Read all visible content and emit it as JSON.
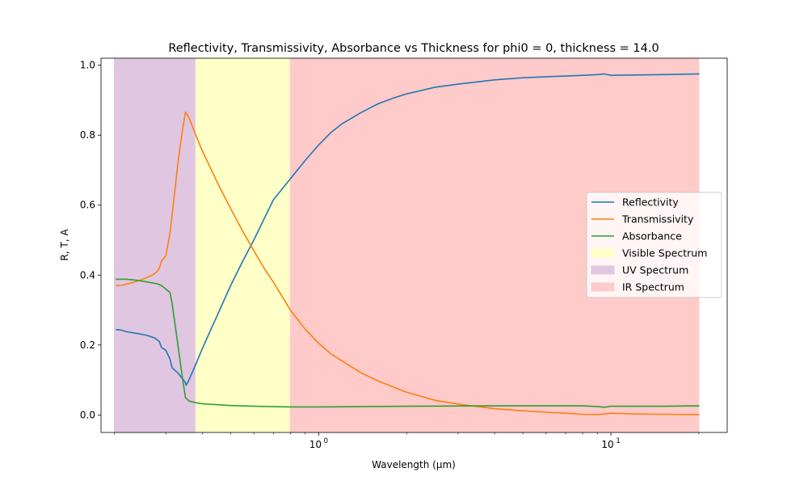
{
  "chart_data": {
    "type": "line",
    "title": "Reflectivity, Transmissivity, Absorbance vs Thickness for phi0 = 0, thickness = 14.0",
    "xlabel": "Wavelength (μm)",
    "ylabel": "R, T, A",
    "xscale": "log",
    "xlim": [
      0.18,
      25
    ],
    "ylim": [
      -0.05,
      1.02
    ],
    "xticks": [
      {
        "value": 1,
        "base": "10",
        "exp": "0"
      },
      {
        "value": 10,
        "base": "10",
        "exp": "1"
      }
    ],
    "yticks": [
      {
        "value": 0.0,
        "label": "0.0"
      },
      {
        "value": 0.2,
        "label": "0.2"
      },
      {
        "value": 0.4,
        "label": "0.4"
      },
      {
        "value": 0.6,
        "label": "0.6"
      },
      {
        "value": 0.8,
        "label": "0.8"
      },
      {
        "value": 1.0,
        "label": "1.0"
      }
    ],
    "grid": false,
    "legend_position": "center-right",
    "spans": [
      {
        "name": "UV Spectrum",
        "x0": 0.2,
        "x1": 0.38,
        "color": "#e0c6e1"
      },
      {
        "name": "Visible Spectrum",
        "x0": 0.38,
        "x1": 0.8,
        "color": "#ffffc8"
      },
      {
        "name": "IR Spectrum",
        "x0": 0.8,
        "x1": 20,
        "color": "#ffcaca"
      }
    ],
    "series": [
      {
        "name": "Reflectivity",
        "color": "#1f77b4",
        "points": [
          [
            0.203,
            0.244
          ],
          [
            0.21,
            0.243
          ],
          [
            0.22,
            0.238
          ],
          [
            0.24,
            0.233
          ],
          [
            0.26,
            0.227
          ],
          [
            0.275,
            0.22
          ],
          [
            0.285,
            0.21
          ],
          [
            0.29,
            0.193
          ],
          [
            0.3,
            0.185
          ],
          [
            0.31,
            0.16
          ],
          [
            0.315,
            0.135
          ],
          [
            0.33,
            0.12
          ],
          [
            0.345,
            0.1
          ],
          [
            0.35,
            0.092
          ],
          [
            0.352,
            0.085
          ],
          [
            0.36,
            0.1
          ],
          [
            0.38,
            0.145
          ],
          [
            0.4,
            0.19
          ],
          [
            0.45,
            0.285
          ],
          [
            0.5,
            0.37
          ],
          [
            0.55,
            0.44
          ],
          [
            0.6,
            0.5
          ],
          [
            0.65,
            0.56
          ],
          [
            0.7,
            0.615
          ],
          [
            0.8,
            0.675
          ],
          [
            0.9,
            0.728
          ],
          [
            1.0,
            0.772
          ],
          [
            1.1,
            0.807
          ],
          [
            1.2,
            0.832
          ],
          [
            1.4,
            0.865
          ],
          [
            1.6,
            0.89
          ],
          [
            1.8,
            0.906
          ],
          [
            2.0,
            0.918
          ],
          [
            2.5,
            0.937
          ],
          [
            3.0,
            0.946
          ],
          [
            4.0,
            0.958
          ],
          [
            5.0,
            0.964
          ],
          [
            6.0,
            0.967
          ],
          [
            7.0,
            0.969
          ],
          [
            8.0,
            0.971
          ],
          [
            9.0,
            0.973
          ],
          [
            9.5,
            0.975
          ],
          [
            10.0,
            0.971
          ],
          [
            12.0,
            0.972
          ],
          [
            15.0,
            0.973
          ],
          [
            20.0,
            0.975
          ]
        ]
      },
      {
        "name": "Transmissivity",
        "color": "#ff7f0e",
        "points": [
          [
            0.203,
            0.37
          ],
          [
            0.21,
            0.37
          ],
          [
            0.23,
            0.378
          ],
          [
            0.25,
            0.388
          ],
          [
            0.27,
            0.4
          ],
          [
            0.28,
            0.41
          ],
          [
            0.285,
            0.42
          ],
          [
            0.29,
            0.44
          ],
          [
            0.3,
            0.455
          ],
          [
            0.31,
            0.52
          ],
          [
            0.32,
            0.62
          ],
          [
            0.33,
            0.72
          ],
          [
            0.34,
            0.8
          ],
          [
            0.35,
            0.866
          ],
          [
            0.36,
            0.85
          ],
          [
            0.38,
            0.8
          ],
          [
            0.4,
            0.755
          ],
          [
            0.45,
            0.665
          ],
          [
            0.5,
            0.59
          ],
          [
            0.55,
            0.525
          ],
          [
            0.6,
            0.47
          ],
          [
            0.65,
            0.42
          ],
          [
            0.7,
            0.38
          ],
          [
            0.8,
            0.3
          ],
          [
            0.9,
            0.245
          ],
          [
            1.0,
            0.205
          ],
          [
            1.1,
            0.175
          ],
          [
            1.2,
            0.155
          ],
          [
            1.4,
            0.12
          ],
          [
            1.6,
            0.097
          ],
          [
            1.8,
            0.08
          ],
          [
            2.0,
            0.065
          ],
          [
            2.5,
            0.042
          ],
          [
            3.0,
            0.031
          ],
          [
            4.0,
            0.018
          ],
          [
            5.0,
            0.012
          ],
          [
            6.0,
            0.008
          ],
          [
            7.0,
            0.005
          ],
          [
            8.0,
            0.002
          ],
          [
            9.0,
            0.001
          ],
          [
            9.5,
            0.003
          ],
          [
            10.0,
            0.005
          ],
          [
            12.0,
            0.003
          ],
          [
            15.0,
            0.002
          ],
          [
            20.0,
            0.001
          ]
        ]
      },
      {
        "name": "Absorbance",
        "color": "#2ca02c",
        "points": [
          [
            0.203,
            0.388
          ],
          [
            0.22,
            0.388
          ],
          [
            0.24,
            0.385
          ],
          [
            0.26,
            0.38
          ],
          [
            0.28,
            0.375
          ],
          [
            0.29,
            0.37
          ],
          [
            0.3,
            0.36
          ],
          [
            0.31,
            0.35
          ],
          [
            0.315,
            0.32
          ],
          [
            0.32,
            0.28
          ],
          [
            0.33,
            0.2
          ],
          [
            0.34,
            0.12
          ],
          [
            0.35,
            0.05
          ],
          [
            0.36,
            0.04
          ],
          [
            0.38,
            0.035
          ],
          [
            0.4,
            0.032
          ],
          [
            0.5,
            0.027
          ],
          [
            0.6,
            0.025
          ],
          [
            0.8,
            0.023
          ],
          [
            1.0,
            0.023
          ],
          [
            2.0,
            0.025
          ],
          [
            4.0,
            0.026
          ],
          [
            8.0,
            0.026
          ],
          [
            9.0,
            0.024
          ],
          [
            9.5,
            0.022
          ],
          [
            10.0,
            0.025
          ],
          [
            15.0,
            0.025
          ],
          [
            20.0,
            0.026
          ]
        ]
      }
    ],
    "legend_entries": [
      {
        "label": "Reflectivity",
        "kind": "line",
        "color": "#1f77b4"
      },
      {
        "label": "Transmissivity",
        "kind": "line",
        "color": "#ff7f0e"
      },
      {
        "label": "Absorbance",
        "kind": "line",
        "color": "#2ca02c"
      },
      {
        "label": "Visible Spectrum",
        "kind": "patch",
        "color": "#ffffc8"
      },
      {
        "label": "UV Spectrum",
        "kind": "patch",
        "color": "#e0c6e1"
      },
      {
        "label": "IR Spectrum",
        "kind": "patch",
        "color": "#ffcaca"
      }
    ]
  }
}
